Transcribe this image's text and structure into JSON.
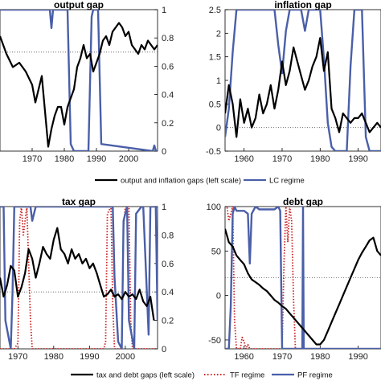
{
  "chart_data": [
    {
      "type": "line",
      "title": "output gap",
      "xlim": [
        1960,
        2009
      ],
      "x_ticks": [
        "1970",
        "1980",
        "1990",
        "2000"
      ],
      "y2_ticks": [
        "0",
        "0.2",
        "0.4",
        "0.6",
        "0.8",
        "1"
      ],
      "y2lim": [
        0,
        1
      ],
      "reference_line_right": 0.7,
      "series": [
        {
          "key": "gap",
          "axis": "left",
          "ylim": [
            -8,
            8
          ],
          "color": "#000000",
          "x": [
            1960,
            1962,
            1964,
            1966,
            1968,
            1970,
            1971,
            1972,
            1973,
            1974,
            1975,
            1976,
            1977,
            1978,
            1979,
            1980,
            1981,
            1982,
            1983,
            1984,
            1985,
            1986,
            1987,
            1988,
            1989,
            1990,
            1991,
            1992,
            1993,
            1994,
            1995,
            1996,
            1997,
            1998,
            1999,
            2000,
            2001,
            2002,
            2003,
            2004,
            2005,
            2006,
            2007,
            2008,
            2009
          ],
          "values": [
            5.0,
            3.0,
            1.5,
            2.0,
            1.0,
            -0.5,
            -2.5,
            -1.0,
            0.5,
            -3.5,
            -7.5,
            -5.5,
            -4.0,
            -3.0,
            -3.0,
            -5.0,
            -3.0,
            -2.0,
            -1.0,
            1.5,
            2.5,
            4.0,
            2.5,
            3.0,
            1.0,
            2.0,
            3.0,
            4.5,
            5.0,
            4.0,
            5.5,
            6.0,
            6.5,
            6.0,
            5.0,
            5.5,
            4.0,
            3.5,
            3.0,
            4.0,
            3.5,
            4.5,
            4.0,
            3.5,
            4.0
          ]
        },
        {
          "key": "regime",
          "axis": "right",
          "color": "#4a5fa8",
          "x": [
            1960,
            1975.5,
            1976,
            1976.5,
            1977,
            1981,
            1982,
            1983,
            1987.5,
            1988.5,
            1989,
            1990.5,
            1991.5,
            2007.5,
            2008,
            2008.5,
            2009
          ],
          "values": [
            1,
            1,
            0.87,
            1,
            1,
            1,
            0.05,
            0,
            0,
            0.95,
            1,
            1,
            0.05,
            0,
            0.04,
            0,
            0
          ]
        }
      ]
    },
    {
      "type": "line",
      "title": "inflation gap",
      "xlim": [
        1955,
        1996
      ],
      "x_ticks": [
        "1960",
        "1970",
        "1980",
        "1990"
      ],
      "y_ticks": [
        "-0.5",
        "0",
        "0.5",
        "1",
        "1.5",
        "2",
        "2.5"
      ],
      "ylim": [
        -0.5,
        2.5
      ],
      "reference_line_left": 0,
      "series": [
        {
          "key": "gap",
          "axis": "left",
          "color": "#000000",
          "x": [
            1955,
            1956,
            1957,
            1958,
            1959,
            1960,
            1961,
            1962,
            1963,
            1964,
            1965,
            1966,
            1967,
            1968,
            1969,
            1970,
            1971,
            1972,
            1973,
            1974,
            1975,
            1976,
            1977,
            1978,
            1979,
            1980,
            1981,
            1982,
            1983,
            1984,
            1985,
            1986,
            1987,
            1988,
            1989,
            1990,
            1991,
            1992,
            1993,
            1994,
            1995,
            1996
          ],
          "values": [
            0.3,
            0.9,
            0.5,
            -0.2,
            0.6,
            0.1,
            0.4,
            0.0,
            0.2,
            0.7,
            0.3,
            0.5,
            0.9,
            0.4,
            0.8,
            1.4,
            0.9,
            1.2,
            1.7,
            1.4,
            1.1,
            0.8,
            1.0,
            1.3,
            1.5,
            1.9,
            1.2,
            1.6,
            0.4,
            0.2,
            -0.1,
            0.3,
            0.2,
            0.1,
            0.2,
            0.2,
            0.3,
            0.1,
            -0.1,
            0.0,
            0.1,
            0.0
          ]
        },
        {
          "key": "regime",
          "axis": "right",
          "color": "#4a5fa8",
          "x": [
            1955,
            1956,
            1957,
            1958,
            1959,
            1960,
            1968,
            1969,
            1970,
            1971,
            1972,
            1973,
            1975,
            1976,
            1977,
            1980,
            1981,
            1982,
            1983,
            1984,
            1987,
            1988,
            1989,
            1991,
            1992,
            1993,
            1996
          ],
          "values": [
            0.1,
            0.3,
            0.7,
            1,
            1,
            1,
            1,
            0.75,
            0.55,
            0.85,
            1,
            1,
            1,
            0.85,
            1,
            1,
            0.65,
            0.2,
            0.03,
            0,
            0,
            0.6,
            1,
            1,
            0.1,
            0,
            0
          ]
        }
      ]
    },
    {
      "type": "line",
      "title": "tax gap",
      "xlim": [
        1965,
        2009
      ],
      "x_ticks": [
        "1970",
        "1980",
        "1990",
        "2000"
      ],
      "y2_ticks": [
        "0",
        "0.2",
        "0.4",
        "0.6",
        "0.8",
        "1"
      ],
      "y2lim": [
        0,
        1
      ],
      "reference_line_right": 0.4,
      "series": [
        {
          "key": "gap",
          "axis": "left",
          "ylim": [
            -3,
            3
          ],
          "color": "#000000",
          "x": [
            1965,
            1966,
            1967,
            1968,
            1969,
            1970,
            1971,
            1972,
            1973,
            1974,
            1975,
            1976,
            1977,
            1978,
            1979,
            1980,
            1981,
            1982,
            1983,
            1984,
            1985,
            1986,
            1987,
            1988,
            1989,
            1990,
            1991,
            1992,
            1993,
            1994,
            1995,
            1996,
            1997,
            1998,
            1999,
            2000,
            2001,
            2002,
            2003,
            2004,
            2005,
            2006,
            2007,
            2008
          ],
          "values": [
            0.0,
            -0.8,
            -0.3,
            0.5,
            0.3,
            -0.8,
            -0.4,
            0.2,
            1.2,
            0.8,
            0.0,
            0.6,
            1.3,
            1.0,
            0.8,
            1.6,
            2.1,
            1.2,
            1.0,
            0.6,
            1.2,
            0.8,
            1.0,
            0.6,
            0.8,
            0.4,
            0.6,
            0.2,
            -0.3,
            -0.8,
            -0.7,
            -0.5,
            -0.8,
            -0.7,
            -0.9,
            -0.6,
            -0.8,
            -0.7,
            -0.9,
            -0.5,
            -1.0,
            -1.2,
            -0.8,
            -1.8
          ]
        },
        {
          "key": "tf",
          "axis": "right",
          "color": "#cc2222",
          "x": [
            1965,
            1969,
            1970,
            1970.5,
            1971,
            1971.5,
            1972.5,
            1973.5,
            1974,
            1994,
            1994.5,
            1995,
            1996,
            1996.5,
            1997,
            1999,
            1999.5,
            2000,
            2001,
            2001.5,
            2002,
            2009
          ],
          "values": [
            0,
            0,
            0.04,
            0.9,
            1,
            0.8,
            1,
            0.2,
            0,
            0,
            0.05,
            0.95,
            1,
            0.3,
            0,
            0,
            0.85,
            1,
            1,
            0.2,
            0,
            0
          ]
        },
        {
          "key": "pf",
          "axis": "right",
          "color": "#4a5fa8",
          "x": [
            1965,
            1966,
            1966.5,
            1968,
            1968.5,
            1969,
            1973.5,
            1974,
            1975,
            1996.5,
            1997,
            1998,
            1999,
            1999.5,
            2000.5,
            2001,
            2002.5,
            2003,
            2004.5,
            2005,
            2006.5,
            2007,
            2008.5,
            2009
          ],
          "values": [
            1,
            1,
            0.2,
            0,
            0.4,
            1,
            1,
            0.9,
            1,
            1,
            0.5,
            0.05,
            0,
            0.9,
            1,
            0.2,
            0,
            0.95,
            1,
            1,
            0.1,
            1,
            1,
            0.2
          ]
        }
      ]
    },
    {
      "type": "line",
      "title": "debt gap",
      "xlim": [
        1955,
        1996
      ],
      "x_ticks": [
        "1960",
        "1970",
        "1980",
        "1990"
      ],
      "y_ticks": [
        "-50",
        "0",
        "50",
        "100"
      ],
      "ylim": [
        -60,
        100
      ],
      "reference_line_left": 20,
      "series": [
        {
          "key": "gap",
          "axis": "left",
          "color": "#000000",
          "x": [
            1955,
            1956,
            1957,
            1958,
            1959,
            1960,
            1961,
            1962,
            1963,
            1964,
            1965,
            1966,
            1967,
            1968,
            1969,
            1970,
            1971,
            1972,
            1973,
            1974,
            1975,
            1976,
            1977,
            1978,
            1979,
            1980,
            1981,
            1982,
            1983,
            1984,
            1985,
            1986,
            1987,
            1988,
            1989,
            1990,
            1991,
            1992,
            1993,
            1994,
            1995,
            1996
          ],
          "values": [
            75,
            60,
            55,
            45,
            40,
            35,
            25,
            18,
            15,
            12,
            8,
            5,
            0,
            -5,
            -8,
            -12,
            -15,
            -20,
            -25,
            -30,
            -35,
            -40,
            -45,
            -50,
            -55,
            -55,
            -50,
            -40,
            -30,
            -20,
            -10,
            0,
            10,
            20,
            30,
            40,
            48,
            55,
            62,
            65,
            50,
            45
          ]
        },
        {
          "key": "tf",
          "axis": "right",
          "color": "#cc2222",
          "x": [
            1955,
            1955.5,
            1956,
            1957,
            1957.5,
            1958,
            1959,
            1959.5,
            1960,
            1960.5,
            1961,
            1961.5,
            1970,
            1970.5,
            1971,
            1971.5,
            1972,
            1972.5,
            1973,
            1973.5,
            1974,
            1996
          ],
          "values": [
            1,
            1,
            0.9,
            1,
            0.2,
            0,
            0,
            0.08,
            0.05,
            0,
            0.03,
            0,
            0,
            0.6,
            1,
            0.75,
            1,
            0.9,
            0.35,
            0,
            0,
            0
          ]
        },
        {
          "key": "pf",
          "axis": "right",
          "color": "#4a5fa8",
          "x": [
            1955,
            1956,
            1956.5,
            1957,
            1957.5,
            1958,
            1960,
            1961,
            1961.5,
            1962,
            1963,
            1964,
            1968,
            1969,
            1969.5,
            1970,
            1975.3,
            1975.5,
            1975.7,
            1996
          ],
          "values": [
            0,
            0,
            0.3,
            0.95,
            1,
            0.97,
            0.97,
            0.95,
            0.6,
            0.95,
            1,
            0.98,
            0.98,
            1,
            0.97,
            0,
            0,
            1,
            0,
            0
          ]
        }
      ]
    }
  ],
  "legends": {
    "top": [
      {
        "label": "output and inflation gaps (left scale)",
        "color": "#000000",
        "dash": ""
      },
      {
        "label": "LC regime",
        "color": "#4a5fa8",
        "dash": ""
      }
    ],
    "bottom": [
      {
        "label": "tax and debt gaps (left scale)",
        "color": "#000000",
        "dash": ""
      },
      {
        "label": "TF regime",
        "color": "#cc2222",
        "dash": "dotted"
      },
      {
        "label": "PF regime",
        "color": "#4a5fa8",
        "dash": ""
      }
    ]
  }
}
